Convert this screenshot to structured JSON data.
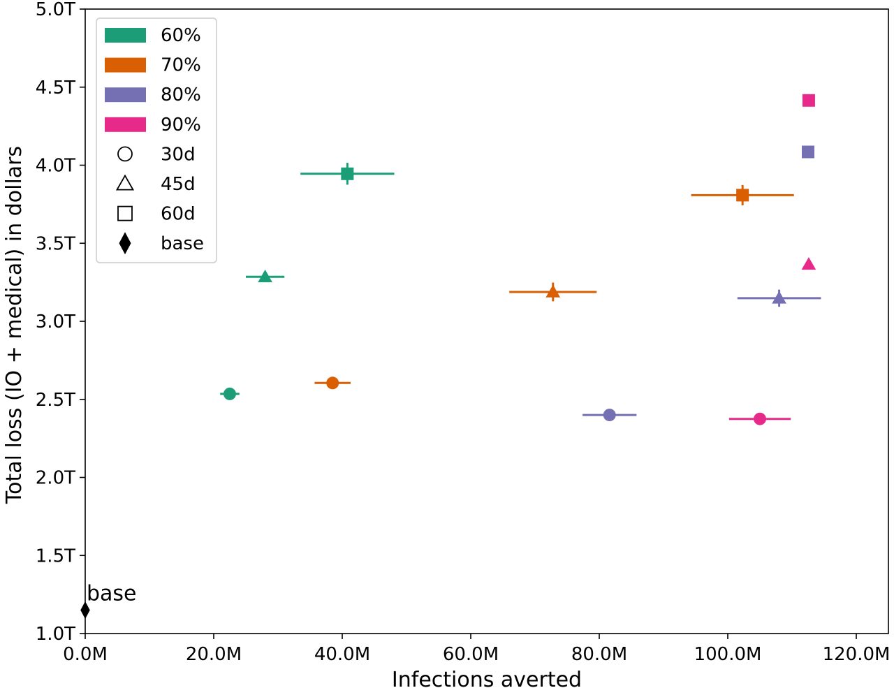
{
  "chart_data": {
    "type": "scatter",
    "xlabel": "Infections averted",
    "ylabel": "Total loss (IO + medical) in dollars",
    "xlim": [
      0,
      125000000
    ],
    "ylim": [
      1000000000000,
      5000000000000
    ],
    "x_ticks": [
      {
        "value": 0,
        "label": "0.0M"
      },
      {
        "value": 20000000,
        "label": "20.0M"
      },
      {
        "value": 40000000,
        "label": "40.0M"
      },
      {
        "value": 60000000,
        "label": "60.0M"
      },
      {
        "value": 80000000,
        "label": "80.0M"
      },
      {
        "value": 100000000,
        "label": "100.0M"
      },
      {
        "value": 120000000,
        "label": "120.0M"
      }
    ],
    "y_ticks": [
      {
        "value": 1000000000000,
        "label": "1.0T"
      },
      {
        "value": 1500000000000,
        "label": "1.5T"
      },
      {
        "value": 2000000000000,
        "label": "2.0T"
      },
      {
        "value": 2500000000000,
        "label": "2.5T"
      },
      {
        "value": 3000000000000,
        "label": "3.0T"
      },
      {
        "value": 3500000000000,
        "label": "3.5T"
      },
      {
        "value": 4000000000000,
        "label": "4.0T"
      },
      {
        "value": 4500000000000,
        "label": "4.5T"
      },
      {
        "value": 5000000000000,
        "label": "5.0T"
      }
    ],
    "grid": false,
    "legend_position": "top-left",
    "legend": [
      {
        "label": "60%",
        "kind": "patch",
        "color": "#1b9e77"
      },
      {
        "label": "70%",
        "kind": "patch",
        "color": "#d95f02"
      },
      {
        "label": "80%",
        "kind": "patch",
        "color": "#7570b3"
      },
      {
        "label": "90%",
        "kind": "patch",
        "color": "#e7298a"
      },
      {
        "label": "30d",
        "kind": "marker",
        "marker": "circle"
      },
      {
        "label": "45d",
        "kind": "marker",
        "marker": "triangle"
      },
      {
        "label": "60d",
        "kind": "marker",
        "marker": "square"
      },
      {
        "label": "base",
        "kind": "marker",
        "marker": "diamond"
      }
    ],
    "points": [
      {
        "group": "60%",
        "duration": "30d",
        "marker": "circle",
        "color": "#1b9e77",
        "x": 22500000,
        "y": 2535000000000,
        "xerr": 1500000,
        "yerr": 0
      },
      {
        "group": "60%",
        "duration": "45d",
        "marker": "triangle",
        "color": "#1b9e77",
        "x": 28000000,
        "y": 3285000000000,
        "xerr": 3000000,
        "yerr": 10000000000
      },
      {
        "group": "60%",
        "duration": "60d",
        "marker": "square",
        "color": "#1b9e77",
        "x": 40800000,
        "y": 3945000000000,
        "xerr": 7300000,
        "yerr": 70000000000
      },
      {
        "group": "70%",
        "duration": "30d",
        "marker": "circle",
        "color": "#d95f02",
        "x": 38500000,
        "y": 2605000000000,
        "xerr": 2800000,
        "yerr": 0
      },
      {
        "group": "70%",
        "duration": "45d",
        "marker": "triangle",
        "color": "#d95f02",
        "x": 72800000,
        "y": 3188000000000,
        "xerr": 6800000,
        "yerr": 60000000000
      },
      {
        "group": "70%",
        "duration": "60d",
        "marker": "square",
        "color": "#d95f02",
        "x": 102300000,
        "y": 3808000000000,
        "xerr": 8000000,
        "yerr": 65000000000
      },
      {
        "group": "80%",
        "duration": "30d",
        "marker": "circle",
        "color": "#7570b3",
        "x": 81600000,
        "y": 2400000000000,
        "xerr": 4200000,
        "yerr": 0
      },
      {
        "group": "80%",
        "duration": "45d",
        "marker": "triangle",
        "color": "#7570b3",
        "x": 108000000,
        "y": 3148000000000,
        "xerr": 6500000,
        "yerr": 55000000000
      },
      {
        "group": "80%",
        "duration": "60d",
        "marker": "square",
        "color": "#7570b3",
        "x": 112500000,
        "y": 4085000000000,
        "xerr": 0,
        "yerr": 0
      },
      {
        "group": "90%",
        "duration": "30d",
        "marker": "circle",
        "color": "#e7298a",
        "x": 105000000,
        "y": 2375000000000,
        "xerr": 4800000,
        "yerr": 0
      },
      {
        "group": "90%",
        "duration": "45d",
        "marker": "triangle",
        "color": "#e7298a",
        "x": 112600000,
        "y": 3365000000000,
        "xerr": 0,
        "yerr": 0
      },
      {
        "group": "90%",
        "duration": "60d",
        "marker": "square",
        "color": "#e7298a",
        "x": 112600000,
        "y": 4415000000000,
        "xerr": 0,
        "yerr": 0
      },
      {
        "group": "base",
        "duration": "base",
        "marker": "diamond",
        "color": "#000000",
        "x": 0,
        "y": 1150000000000,
        "xerr": 0,
        "yerr": 0
      }
    ],
    "annotations": [
      {
        "text": "base",
        "x": 0,
        "y": 1150000000000
      }
    ]
  }
}
